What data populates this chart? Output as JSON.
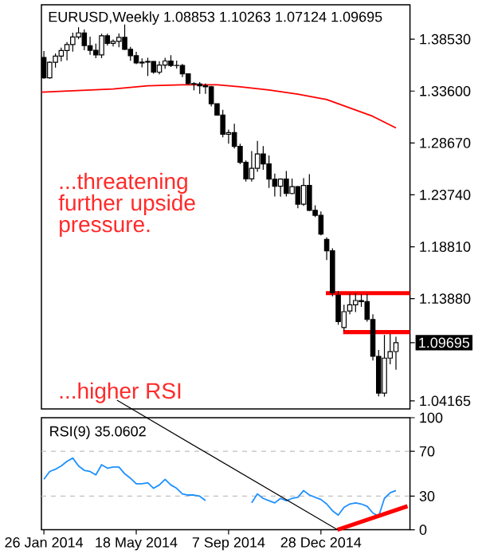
{
  "chart_data": [
    {
      "type": "candlestick",
      "title": "EURUSD,Weekly 1.08853 1.10263 1.07124 1.09695",
      "x": [
        "2014-01-26",
        "2014-02-02",
        "2014-02-09",
        "2014-02-16",
        "2014-02-23",
        "2014-03-02",
        "2014-03-09",
        "2014-03-16",
        "2014-03-23",
        "2014-03-30",
        "2014-04-06",
        "2014-04-13",
        "2014-04-20",
        "2014-04-27",
        "2014-05-04",
        "2014-05-11",
        "2014-05-18",
        "2014-05-25",
        "2014-06-01",
        "2014-06-08",
        "2014-06-15",
        "2014-06-22",
        "2014-06-29",
        "2014-07-06",
        "2014-07-13",
        "2014-07-20",
        "2014-07-27",
        "2014-08-03",
        "2014-08-10",
        "2014-08-17",
        "2014-08-24",
        "2014-08-31",
        "2014-09-07",
        "2014-09-14",
        "2014-09-21",
        "2014-09-28",
        "2014-10-05",
        "2014-10-12",
        "2014-10-19",
        "2014-10-26",
        "2014-11-02",
        "2014-11-09",
        "2014-11-16",
        "2014-11-23",
        "2014-11-30",
        "2014-12-07",
        "2014-12-14",
        "2014-12-21",
        "2014-12-28",
        "2015-01-04",
        "2015-01-11",
        "2015-01-18",
        "2015-01-25",
        "2015-02-01",
        "2015-02-08",
        "2015-02-15",
        "2015-02-22",
        "2015-03-01",
        "2015-03-08",
        "2015-03-15",
        "2015-03-22",
        "2015-03-29"
      ],
      "ohlc": [
        [
          1.368,
          1.374,
          1.3478,
          1.3486
        ],
        [
          1.3486,
          1.3643,
          1.3477,
          1.3634
        ],
        [
          1.3634,
          1.3717,
          1.3583,
          1.3692
        ],
        [
          1.3692,
          1.3773,
          1.3643,
          1.3745
        ],
        [
          1.3745,
          1.3826,
          1.3651,
          1.3802
        ],
        [
          1.3802,
          1.3915,
          1.3735,
          1.3874
        ],
        [
          1.3874,
          1.3967,
          1.3853,
          1.3913
        ],
        [
          1.3913,
          1.3945,
          1.3749,
          1.3792
        ],
        [
          1.3792,
          1.3877,
          1.3705,
          1.3747
        ],
        [
          1.3747,
          1.3811,
          1.3673,
          1.3704
        ],
        [
          1.3704,
          1.3905,
          1.3673,
          1.3885
        ],
        [
          1.3885,
          1.3906,
          1.3792,
          1.3813
        ],
        [
          1.3813,
          1.385,
          1.3785,
          1.3832
        ],
        [
          1.3832,
          1.3908,
          1.3776,
          1.3871
        ],
        [
          1.3871,
          1.3993,
          1.375,
          1.3757
        ],
        [
          1.3757,
          1.378,
          1.3647,
          1.3696
        ],
        [
          1.3696,
          1.3734,
          1.3615,
          1.3627
        ],
        [
          1.3627,
          1.3671,
          1.3586,
          1.3635
        ],
        [
          1.3635,
          1.3677,
          1.3503,
          1.3642
        ],
        [
          1.3642,
          1.3644,
          1.3524,
          1.354
        ],
        [
          1.354,
          1.3644,
          1.352,
          1.3607
        ],
        [
          1.3607,
          1.3677,
          1.3573,
          1.3646
        ],
        [
          1.3646,
          1.3701,
          1.3589,
          1.3603
        ],
        [
          1.3603,
          1.3649,
          1.3575,
          1.3604
        ],
        [
          1.3604,
          1.3618,
          1.3492,
          1.3524
        ],
        [
          1.3524,
          1.3529,
          1.3421,
          1.3431
        ],
        [
          1.3431,
          1.3444,
          1.3367,
          1.3427
        ],
        [
          1.3427,
          1.3445,
          1.3333,
          1.341
        ],
        [
          1.341,
          1.3433,
          1.3333,
          1.3401
        ],
        [
          1.3401,
          1.3409,
          1.3214,
          1.324
        ],
        [
          1.324,
          1.324,
          1.313,
          1.3132
        ],
        [
          1.3132,
          1.3182,
          1.292,
          1.295
        ],
        [
          1.295,
          1.2995,
          1.286,
          1.2966
        ],
        [
          1.2966,
          1.3049,
          1.2815,
          1.2834
        ],
        [
          1.2834,
          1.286,
          1.2666,
          1.2683
        ],
        [
          1.2683,
          1.2702,
          1.25,
          1.2526
        ],
        [
          1.2526,
          1.279,
          1.25,
          1.2626
        ],
        [
          1.2626,
          1.2887,
          1.2594,
          1.2762
        ],
        [
          1.2762,
          1.2838,
          1.2613,
          1.2668
        ],
        [
          1.2668,
          1.2748,
          1.2439,
          1.2523
        ],
        [
          1.2523,
          1.2577,
          1.2358,
          1.2456
        ],
        [
          1.2456,
          1.2531,
          1.2357,
          1.2524
        ],
        [
          1.2524,
          1.26,
          1.2358,
          1.2387
        ],
        [
          1.2387,
          1.2528,
          1.238,
          1.2452
        ],
        [
          1.2452,
          1.2457,
          1.2246,
          1.2286
        ],
        [
          1.2286,
          1.2532,
          1.227,
          1.2463
        ],
        [
          1.2463,
          1.257,
          1.222,
          1.2227
        ],
        [
          1.2227,
          1.2275,
          1.2163,
          1.218
        ],
        [
          1.218,
          1.2217,
          1.199,
          1.2001
        ],
        [
          1.1951,
          1.197,
          1.1754,
          1.1842
        ],
        [
          1.1842,
          1.1867,
          1.141,
          1.1445
        ],
        [
          1.142,
          1.146,
          1.114,
          1.117
        ],
        [
          1.1114,
          1.133,
          1.108,
          1.1264
        ],
        [
          1.127,
          1.1435,
          1.124,
          1.133
        ],
        [
          1.133,
          1.144,
          1.126,
          1.137
        ],
        [
          1.137,
          1.143,
          1.131,
          1.136
        ],
        [
          1.136,
          1.143,
          1.117,
          1.119
        ],
        [
          1.119,
          1.124,
          1.08,
          1.084
        ],
        [
          1.084,
          1.09,
          1.046,
          1.049
        ],
        [
          1.049,
          1.1043,
          1.0457,
          1.0823
        ],
        [
          1.0823,
          1.1052,
          1.0764,
          1.0885
        ],
        [
          1.08853,
          1.10263,
          1.07124,
          1.09695
        ]
      ],
      "color": "#000000",
      "series": [
        {
          "type": "line",
          "color": "#ff0000",
          "x": [
            "2014-01-23",
            "2014-04-20",
            "2014-06-01",
            "2014-07-13",
            "2014-08-24",
            "2014-09-21",
            "2014-10-26",
            "2014-11-30",
            "2015-01-04",
            "2015-02-01",
            "2015-03-01",
            "2015-03-29"
          ],
          "values": [
            1.335,
            1.338,
            1.341,
            1.342,
            1.342,
            1.34,
            1.337,
            1.333,
            1.328,
            1.32,
            1.312,
            1.301
          ]
        },
        {
          "type": "line",
          "color": "#ff0000",
          "x": [
            "2015-01-03",
            "2015-04-15"
          ],
          "values": [
            1.144,
            1.144
          ]
        },
        {
          "type": "line",
          "color": "#ff0000",
          "x": [
            "2015-01-24",
            "2015-04-15"
          ],
          "values": [
            1.107,
            1.107
          ]
        }
      ],
      "xlim": [
        "2014-01-23",
        "2015-04-15"
      ],
      "ylim": [
        1.034,
        1.418
      ],
      "yticks": [
        {
          "value": 1.3853,
          "label": "1.38530"
        },
        {
          "value": 1.336,
          "label": "1.33600"
        },
        {
          "value": 1.2867,
          "label": "1.28670"
        },
        {
          "value": 1.2374,
          "label": "1.23740"
        },
        {
          "value": 1.1881,
          "label": "1.18810"
        },
        {
          "value": 1.1388,
          "label": "1.13880"
        },
        1.09695,
        1.04165
      ],
      "tick_labels": "y",
      "annotations": [
        "...threatening further upside pressure."
      ]
    },
    {
      "type": "line",
      "title": "RSI(9) 35.0602",
      "x": [
        "2014-01-26",
        "2014-02-02",
        "2014-02-09",
        "2014-02-16",
        "2014-02-23",
        "2014-03-02",
        "2014-03-09",
        "2014-03-16",
        "2014-03-23",
        "2014-03-30",
        "2014-04-06",
        "2014-04-13",
        "2014-04-20",
        "2014-04-27",
        "2014-05-04",
        "2014-05-11",
        "2014-05-18",
        "2014-05-25",
        "2014-06-01",
        "2014-06-08",
        "2014-06-15",
        "2014-06-22",
        "2014-06-29",
        "2014-07-06",
        "2014-07-13",
        "2014-07-20",
        "2014-07-27",
        "2014-08-03",
        "2014-08-10",
        "2014-08-17",
        "2014-08-24",
        "2014-08-31",
        "2014-09-07",
        "2014-09-14",
        "2014-09-21",
        "2014-09-28",
        "2014-10-05",
        "2014-10-12",
        "2014-10-19",
        "2014-10-26",
        "2014-11-02",
        "2014-11-09",
        "2014-11-16",
        "2014-11-23",
        "2014-11-30",
        "2014-12-07",
        "2014-12-14",
        "2014-12-21",
        "2014-12-28",
        "2015-01-04",
        "2015-01-11",
        "2015-01-18",
        "2015-01-25",
        "2015-02-01",
        "2015-02-08",
        "2015-02-15",
        "2015-02-22",
        "2015-03-01",
        "2015-03-08",
        "2015-03-15",
        "2015-03-22",
        "2015-03-29"
      ],
      "series": [
        {
          "color": "#1e90ff",
          "values": [
            45,
            52,
            54,
            57,
            61,
            64,
            57,
            53,
            52,
            49,
            58,
            55,
            56,
            56,
            50,
            46,
            41,
            41,
            42,
            37,
            40,
            45,
            40,
            37,
            32,
            31,
            31,
            30,
            26,
            null,
            null,
            null,
            null,
            null,
            null,
            null,
            24,
            32,
            28,
            26,
            24,
            28,
            26,
            28,
            29,
            35,
            31,
            29,
            27,
            23,
            17,
            13,
            20,
            23,
            24,
            23,
            21,
            15,
            12,
            28,
            33,
            35
          ]
        },
        {
          "color": "#ff0000",
          "x": [
            "2015-01-17",
            "2015-04-12"
          ],
          "values": [
            0,
            21
          ]
        }
      ],
      "xlim": [
        "2014-01-23",
        "2015-04-15"
      ],
      "ylim": [
        0,
        100
      ],
      "yticks": [
        0,
        30,
        70,
        100
      ],
      "xticks": [
        {
          "value": "2014-01-26",
          "label": "26 Jan 2014"
        },
        {
          "value": "2014-05-18",
          "label": "18 May 2014"
        },
        {
          "value": "2014-09-07",
          "label": "7 Sep 2014"
        },
        {
          "value": "2014-12-28",
          "label": "28 Dec 2014"
        }
      ],
      "ref_lines": [
        {
          "axis": "y",
          "value": 70,
          "color": "#c0c0c0",
          "line_style": "dashed"
        },
        {
          "axis": "y",
          "value": 30,
          "color": "#c0c0c0",
          "line_style": "dashed"
        }
      ],
      "annotations": [
        {
          "text": "...higher RSI",
          "x": "2015-01-17",
          "y": 0
        }
      ]
    }
  ]
}
